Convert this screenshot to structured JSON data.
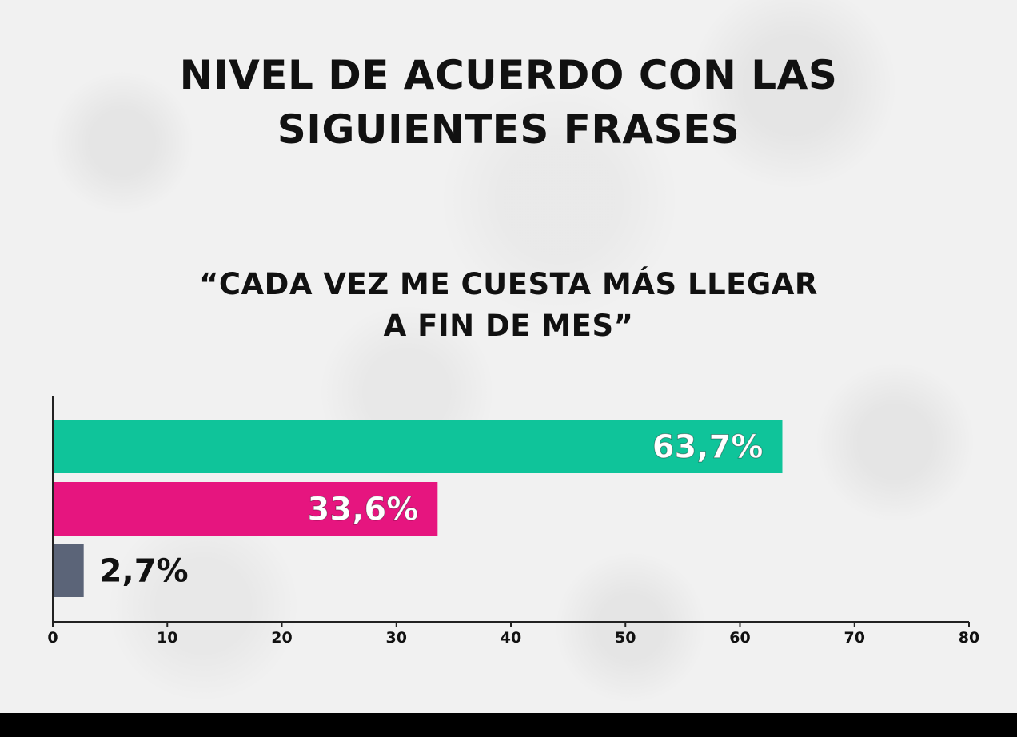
{
  "title_line1": "NIVEL DE ACUERDO CON LAS",
  "title_line2": "SIGUIENTES FRASES",
  "subtitle_line1": "“CADA VEZ ME CUESTA MÁS LLEGAR",
  "subtitle_line2": "A FIN DE MES”",
  "colors": {
    "background": "#f1f1f1",
    "bar_1": "#0fc49a",
    "bar_2": "#e6157f",
    "bar_3": "#5b6478",
    "axis": "#222222"
  },
  "chart_data": {
    "type": "bar",
    "orientation": "horizontal",
    "title": "NIVEL DE ACUERDO CON LAS SIGUIENTES FRASES",
    "subtitle": "“CADA VEZ ME CUESTA MÁS LLEGAR A FIN DE MES”",
    "values": [
      63.7,
      33.6,
      2.7
    ],
    "data_labels": [
      "63,7%",
      "33,6%",
      "2,7%"
    ],
    "label_inside": [
      true,
      true,
      false
    ],
    "xlim": [
      0,
      80
    ],
    "xticks": [
      "0",
      "10",
      "20",
      "30",
      "40",
      "50",
      "60",
      "70",
      "80"
    ],
    "grid": false,
    "legend": "none"
  }
}
